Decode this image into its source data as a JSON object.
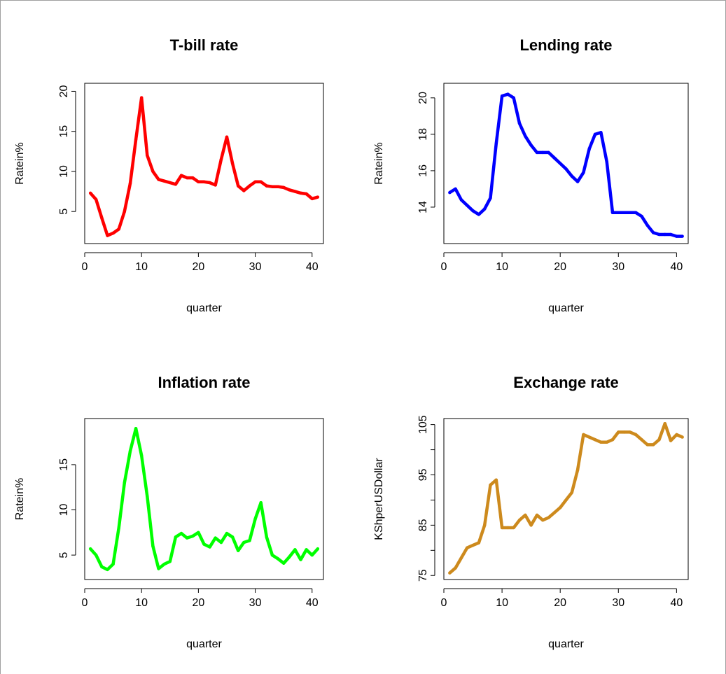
{
  "chart_data": [
    {
      "type": "line",
      "title": "T-bill rate",
      "xlabel": "quarter",
      "ylabel": "Ratein%",
      "color": "#ff0000",
      "xlim": [
        0,
        42
      ],
      "ylim": [
        1,
        21
      ],
      "xticks": [
        0,
        10,
        20,
        30,
        40
      ],
      "yticks": [
        5,
        10,
        15,
        20
      ],
      "x": [
        1,
        2,
        3,
        4,
        5,
        6,
        7,
        8,
        9,
        10,
        11,
        12,
        13,
        14,
        15,
        16,
        17,
        18,
        19,
        20,
        21,
        22,
        23,
        24,
        25,
        26,
        27,
        28,
        29,
        30,
        31,
        32,
        33,
        34,
        35,
        36,
        37,
        38,
        39,
        40,
        41
      ],
      "values": [
        7.3,
        6.5,
        4.2,
        2.0,
        2.3,
        2.8,
        5.0,
        8.5,
        14.0,
        19.2,
        12.0,
        10.0,
        9.0,
        8.8,
        8.6,
        8.4,
        9.5,
        9.2,
        9.2,
        8.7,
        8.7,
        8.6,
        8.3,
        11.5,
        14.3,
        11.0,
        8.2,
        7.6,
        8.2,
        8.7,
        8.7,
        8.2,
        8.1,
        8.1,
        8.0,
        7.7,
        7.5,
        7.3,
        7.2,
        6.6,
        6.8
      ]
    },
    {
      "type": "line",
      "title": "Lending rate",
      "xlabel": "quarter",
      "ylabel": "Ratein%",
      "color": "#0000ff",
      "xlim": [
        0,
        42
      ],
      "ylim": [
        12.0,
        20.8
      ],
      "xticks": [
        0,
        10,
        20,
        30,
        40
      ],
      "yticks": [
        14,
        16,
        18,
        20
      ],
      "x": [
        1,
        2,
        3,
        4,
        5,
        6,
        7,
        8,
        9,
        10,
        11,
        12,
        13,
        14,
        15,
        16,
        17,
        18,
        19,
        20,
        21,
        22,
        23,
        24,
        25,
        26,
        27,
        28,
        29,
        30,
        31,
        32,
        33,
        34,
        35,
        36,
        37,
        38,
        39,
        40,
        41
      ],
      "values": [
        14.8,
        15.0,
        14.4,
        14.1,
        13.8,
        13.6,
        13.9,
        14.5,
        17.5,
        20.1,
        20.2,
        20.0,
        18.6,
        17.9,
        17.4,
        17.0,
        17.0,
        17.0,
        16.7,
        16.4,
        16.1,
        15.7,
        15.4,
        15.9,
        17.2,
        18.0,
        18.1,
        16.5,
        13.7,
        13.7,
        13.7,
        13.7,
        13.7,
        13.5,
        13.0,
        12.6,
        12.5,
        12.5,
        12.5,
        12.4,
        12.4
      ]
    },
    {
      "type": "line",
      "title": "Inflation rate",
      "xlabel": "quarter",
      "ylabel": "Ratein%",
      "color": "#00ff00",
      "xlim": [
        0,
        42
      ],
      "ylim": [
        2.3,
        20.1
      ],
      "xticks": [
        0,
        10,
        20,
        30,
        40
      ],
      "yticks": [
        5,
        10,
        15
      ],
      "x": [
        1,
        2,
        3,
        4,
        5,
        6,
        7,
        8,
        9,
        10,
        11,
        12,
        13,
        14,
        15,
        16,
        17,
        18,
        19,
        20,
        21,
        22,
        23,
        24,
        25,
        26,
        27,
        28,
        29,
        30,
        31,
        32,
        33,
        34,
        35,
        36,
        37,
        38,
        39,
        40,
        41
      ],
      "values": [
        5.7,
        5.0,
        3.7,
        3.4,
        4.0,
        8.0,
        13.0,
        16.5,
        19.0,
        16.0,
        11.5,
        6.0,
        3.5,
        4.0,
        4.3,
        7.0,
        7.4,
        6.9,
        7.1,
        7.5,
        6.2,
        5.9,
        6.9,
        6.4,
        7.4,
        7.0,
        5.5,
        6.4,
        6.6,
        9.0,
        10.8,
        7.0,
        5.0,
        4.6,
        4.1,
        4.8,
        5.6,
        4.5,
        5.6,
        5.0,
        5.7
      ]
    },
    {
      "type": "line",
      "title": "Exchange rate",
      "xlabel": "quarter",
      "ylabel": "KShperUSDollar",
      "color": "#cd8a1d",
      "xlim": [
        0,
        42
      ],
      "ylim": [
        74.2,
        106.2
      ],
      "xticks": [
        0,
        10,
        20,
        30,
        40
      ],
      "yticks": [
        75,
        85,
        95,
        105
      ],
      "yminorticks": [
        80,
        90,
        100
      ],
      "x": [
        1,
        2,
        3,
        4,
        5,
        6,
        7,
        8,
        9,
        10,
        11,
        12,
        13,
        14,
        15,
        16,
        17,
        18,
        19,
        20,
        21,
        22,
        23,
        24,
        25,
        26,
        27,
        28,
        29,
        30,
        31,
        32,
        33,
        34,
        35,
        36,
        37,
        38,
        39,
        40,
        41
      ],
      "values": [
        75.5,
        76.5,
        78.5,
        80.5,
        81.0,
        81.5,
        85.0,
        93.0,
        94.0,
        84.5,
        84.5,
        84.5,
        86.0,
        87.0,
        85.0,
        87.0,
        86.0,
        86.5,
        87.5,
        88.5,
        90.0,
        91.5,
        96.0,
        103.0,
        102.5,
        102.0,
        101.5,
        101.5,
        102.0,
        103.5,
        103.5,
        103.5,
        103.0,
        102.0,
        101.0,
        101.0,
        102.0,
        105.2,
        101.8,
        103.0,
        102.5
      ]
    }
  ]
}
